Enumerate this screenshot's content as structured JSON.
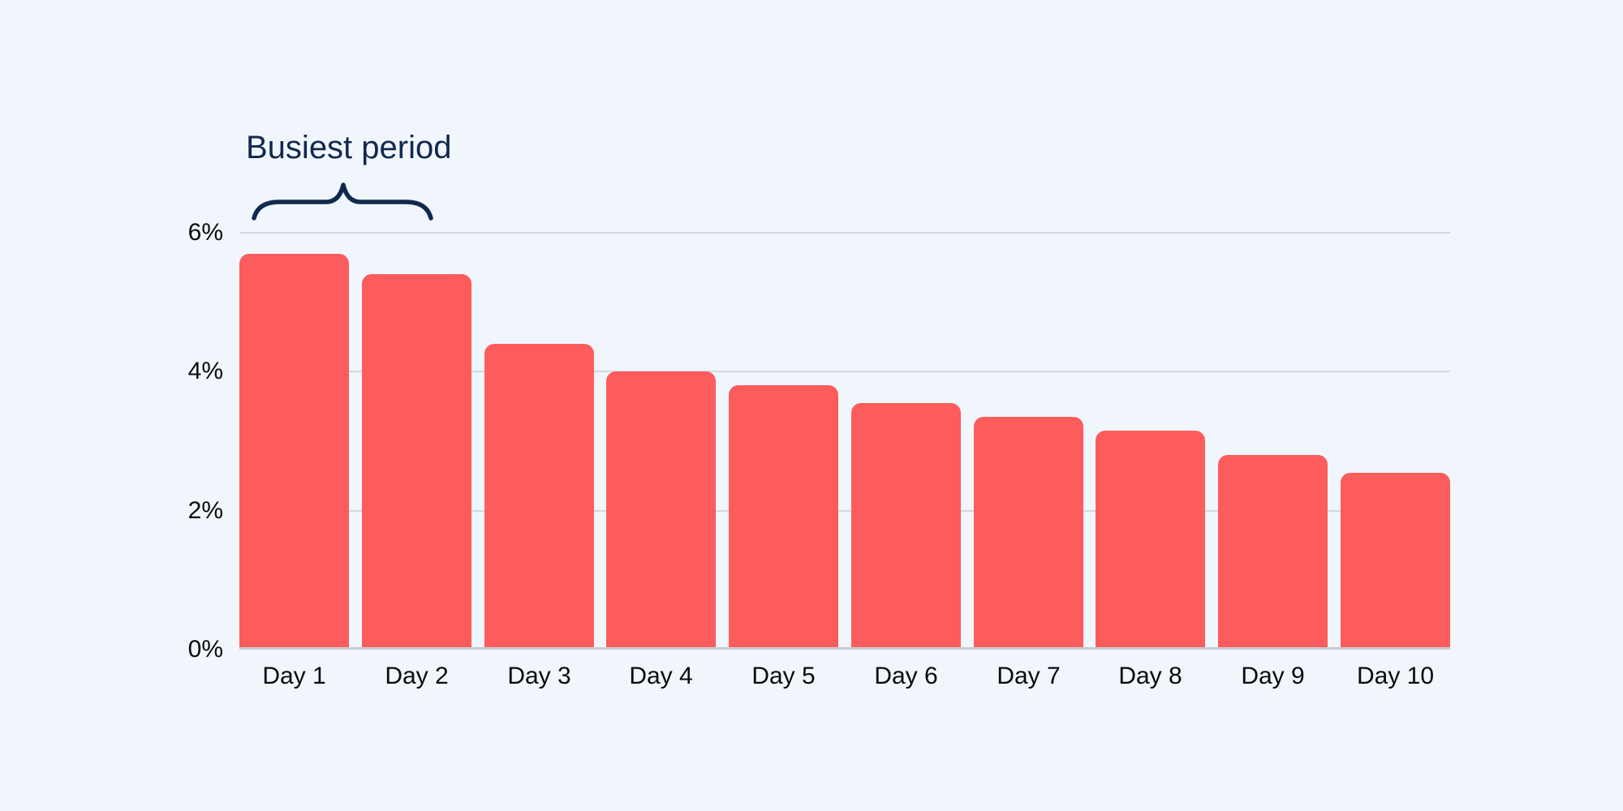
{
  "colors": {
    "background": "#F0F6FC",
    "bar": "#FC5C5C",
    "gridline": "#D4D8DD",
    "axis_line": "#C9CDD2",
    "annotation_navy": "#12294E",
    "tick_label": "#0A0A0A"
  },
  "annotation": {
    "label": "Busiest period",
    "icon": "curly-brace-icon",
    "spans_categories": [
      "Day 1",
      "Day 2"
    ]
  },
  "chart_data": {
    "type": "bar",
    "title": "",
    "xlabel": "",
    "ylabel": "",
    "categories": [
      "Day 1",
      "Day 2",
      "Day 3",
      "Day 4",
      "Day 5",
      "Day 6",
      "Day 7",
      "Day 8",
      "Day 9",
      "Day 10"
    ],
    "values": [
      5.7,
      5.4,
      4.4,
      4.0,
      3.8,
      3.55,
      3.35,
      3.15,
      2.8,
      2.55
    ],
    "value_unit": "%",
    "ylim": [
      0,
      6
    ],
    "ytick_values": [
      0,
      2,
      4,
      6
    ],
    "ytick_labels": [
      "0%",
      "2%",
      "4%",
      "6%"
    ],
    "grid": true,
    "legend": false,
    "bar_corner_radius": "rounded-top"
  }
}
